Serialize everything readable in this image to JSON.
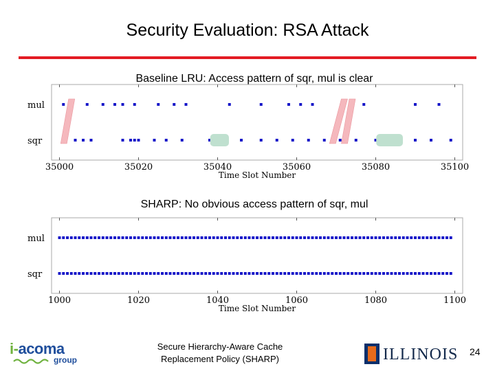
{
  "title": "Security Evaluation: RSA Attack",
  "accent_color": "#e31b23",
  "chart_data": [
    {
      "type": "scatter",
      "caption": "Baseline LRU: Access pattern of sqr, mul is clear",
      "categories": [
        "mul",
        "sqr"
      ],
      "xlabel": "Time Slot Number",
      "xlim": [
        34998,
        35102
      ],
      "xticks": [
        35000,
        35020,
        35040,
        35060,
        35080,
        35100
      ],
      "grid": false,
      "marker_color": "#1515c8",
      "series": [
        {
          "name": "mul",
          "x": [
            35001,
            35003,
            35007,
            35011,
            35014,
            35016,
            35019,
            35025,
            35029,
            35032,
            35043,
            35051,
            35058,
            35061,
            35064,
            35072,
            35074,
            35077,
            35090,
            35096
          ]
        },
        {
          "name": "sqr",
          "x": [
            35001,
            35004,
            35006,
            35008,
            35016,
            35018,
            35019,
            35020,
            35024,
            35027,
            35031,
            35038,
            35039,
            35040,
            35041,
            35042,
            35046,
            35051,
            35055,
            35059,
            35063,
            35067,
            35069,
            35071,
            35072,
            35075,
            35080,
            35082,
            35083,
            35084,
            35085,
            35086,
            35090,
            35094,
            35099
          ]
        }
      ],
      "annotations": {
        "red_links": [
          [
            35001,
            35003
          ],
          [
            35069,
            35072
          ],
          [
            35072,
            35074
          ]
        ],
        "red_color": "#f5b8bd",
        "green_boxes": [
          [
            35039,
            35042
          ],
          [
            35081,
            35086
          ]
        ],
        "green_color": "#bfe0cf"
      }
    },
    {
      "type": "scatter",
      "caption": "SHARP: No obvious access pattern of sqr, mul",
      "categories": [
        "mul",
        "sqr"
      ],
      "xlabel": "Time Slot Number",
      "xlim": [
        998,
        1102
      ],
      "xticks": [
        1000,
        1020,
        1040,
        1060,
        1080,
        1100
      ],
      "grid": false,
      "marker_color": "#1515c8",
      "series": [
        {
          "name": "mul",
          "x_range": [
            1000,
            1099
          ],
          "step": 1
        },
        {
          "name": "sqr",
          "x_range": [
            1000,
            1099
          ],
          "step": 1
        }
      ]
    }
  ],
  "footer": {
    "logo_prefix": "i-",
    "logo_main": "acoma",
    "logo_sub": "group",
    "text_line1": "Secure Hierarchy-Aware Cache",
    "text_line2": "Replacement Policy (SHARP)",
    "university": "ILLINOIS",
    "page": "24"
  }
}
